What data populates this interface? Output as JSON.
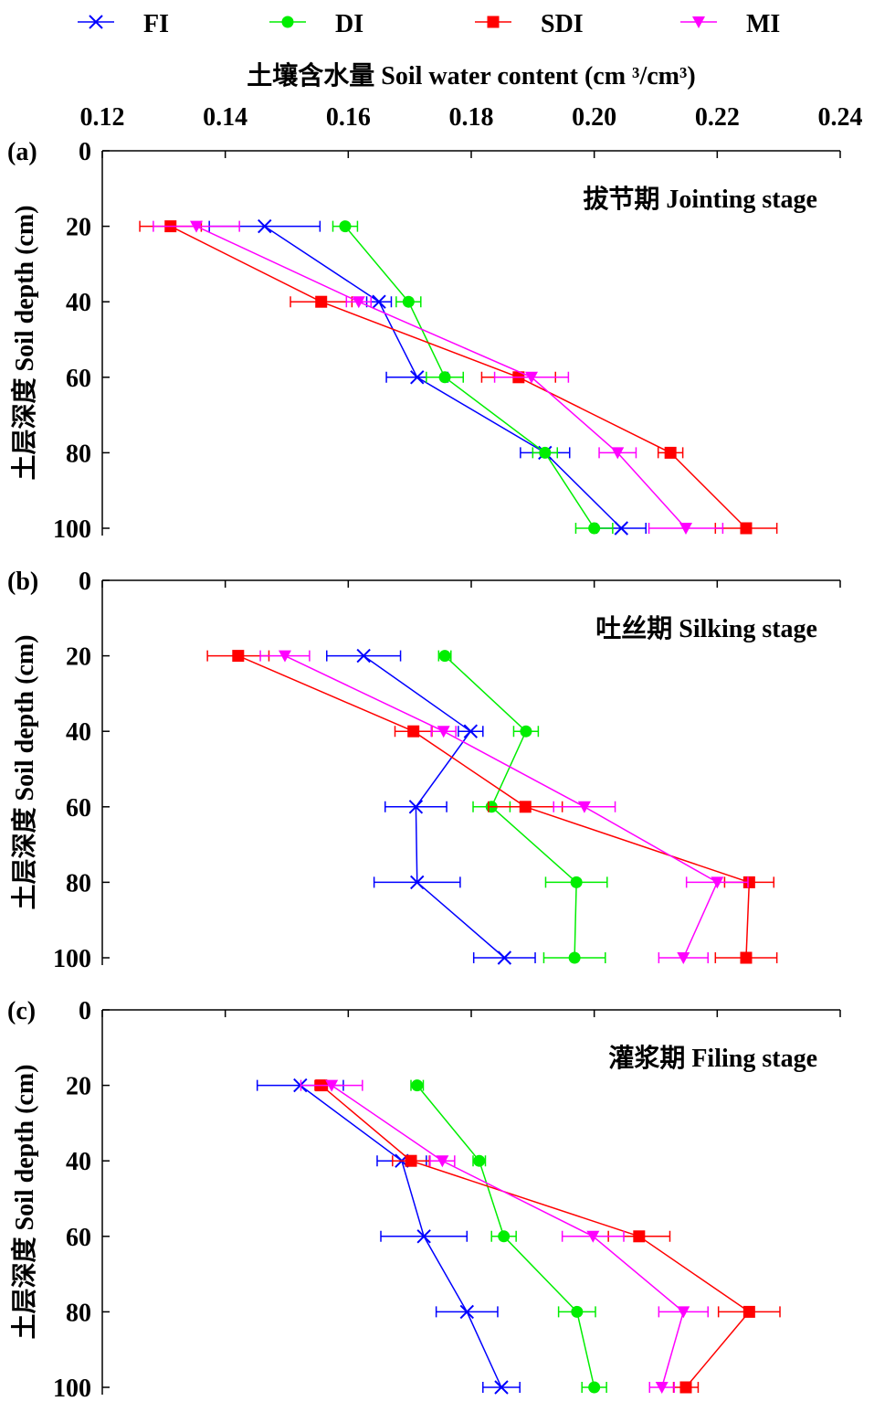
{
  "chart_data": {
    "type": "line",
    "title": "",
    "xlabel": "土壤含水量 Soil water content (cm ³/cm³)",
    "ylabel": "土层深度 Soil depth (cm)",
    "xlim": [
      0.12,
      0.24
    ],
    "xticks": [
      "0.12",
      "0.14",
      "0.16",
      "0.18",
      "0.20",
      "0.22",
      "0.24"
    ],
    "ylim": [
      0,
      100
    ],
    "yticks": [
      "0",
      "20",
      "40",
      "60",
      "80",
      "100"
    ],
    "depths": [
      20,
      40,
      60,
      80,
      100
    ],
    "legend": {
      "placement": "top",
      "entries": [
        {
          "name": "FI",
          "color": "#0000ff",
          "marker": "x"
        },
        {
          "name": "DI",
          "color": "#00ee00",
          "marker": "circle"
        },
        {
          "name": "SDI",
          "color": "#ff0000",
          "marker": "square"
        },
        {
          "name": "MI",
          "color": "#ff00ff",
          "marker": "triangle-down"
        }
      ]
    },
    "panels": [
      {
        "label": "(a)",
        "title": "拔节期 Jointing stage",
        "series": [
          {
            "name": "FI",
            "values": [
              0.1464,
              0.165,
              0.1712,
              0.192,
              0.2044
            ],
            "errors": [
              0.009,
              0.002,
              0.005,
              0.004,
              0.004
            ]
          },
          {
            "name": "DI",
            "values": [
              0.1595,
              0.1698,
              0.1757,
              0.192,
              0.2
            ],
            "errors": [
              0.002,
              0.002,
              0.003,
              0.002,
              0.003
            ]
          },
          {
            "name": "SDI",
            "values": [
              0.1311,
              0.1556,
              0.1877,
              0.2124,
              0.2247
            ],
            "errors": [
              0.005,
              0.005,
              0.006,
              0.002,
              0.005
            ]
          },
          {
            "name": "MI",
            "values": [
              0.1353,
              0.1617,
              0.1898,
              0.2038,
              0.2149
            ],
            "errors": [
              0.007,
              0.002,
              0.006,
              0.003,
              0.006
            ]
          }
        ]
      },
      {
        "label": "(b)",
        "title": "吐丝期 Silking stage",
        "series": [
          {
            "name": "FI",
            "values": [
              0.1625,
              0.1799,
              0.171,
              0.1712,
              0.1854
            ],
            "errors": [
              0.006,
              0.002,
              0.005,
              0.007,
              0.005
            ]
          },
          {
            "name": "DI",
            "values": [
              0.1757,
              0.1889,
              0.1833,
              0.1971,
              0.1968
            ],
            "errors": [
              0.001,
              0.002,
              0.003,
              0.005,
              0.005
            ]
          },
          {
            "name": "SDI",
            "values": [
              0.1421,
              0.1706,
              0.1888,
              0.2252,
              0.2247
            ],
            "errors": [
              0.005,
              0.003,
              0.006,
              0.004,
              0.005
            ]
          },
          {
            "name": "MI",
            "values": [
              0.1497,
              0.1755,
              0.1984,
              0.22,
              0.2145
            ],
            "errors": [
              0.004,
              0.002,
              0.005,
              0.005,
              0.004
            ]
          }
        ]
      },
      {
        "label": "(c)",
        "title": "灌浆期 Filing stage",
        "series": [
          {
            "name": "FI",
            "values": [
              0.1522,
              0.1687,
              0.1723,
              0.1793,
              0.1849
            ],
            "errors": [
              0.007,
              0.004,
              0.007,
              0.005,
              0.003
            ]
          },
          {
            "name": "DI",
            "values": [
              0.1712,
              0.1813,
              0.1853,
              0.1972,
              0.2
            ],
            "errors": [
              0.001,
              0.001,
              0.002,
              0.003,
              0.002
            ]
          },
          {
            "name": "SDI",
            "values": [
              0.1556,
              0.1702,
              0.2073,
              0.2252,
              0.2149
            ],
            "errors": [
              0.001,
              0.003,
              0.005,
              0.005,
              0.002
            ]
          },
          {
            "name": "MI",
            "values": [
              0.1573,
              0.1753,
              0.1998,
              0.2145,
              0.211
            ],
            "errors": [
              0.005,
              0.002,
              0.005,
              0.004,
              0.002
            ]
          }
        ]
      }
    ]
  }
}
